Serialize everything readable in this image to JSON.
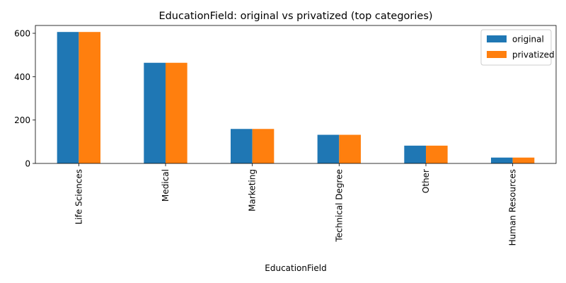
{
  "chart_data": {
    "type": "bar",
    "title": "EducationField: original vs privatized (top categories)",
    "xlabel": "EducationField",
    "ylabel": "",
    "categories": [
      "Life Sciences",
      "Medical",
      "Marketing",
      "Technical Degree",
      "Other",
      "Human Resources"
    ],
    "series": [
      {
        "name": "original",
        "values": [
          606,
          464,
          159,
          132,
          82,
          27
        ],
        "color": "#1f77b4"
      },
      {
        "name": "privatized",
        "values": [
          606,
          464,
          159,
          132,
          82,
          27
        ],
        "color": "#ff7f0e"
      }
    ],
    "ylim": [
      0,
      636
    ],
    "yticks": [
      0,
      200,
      400,
      600
    ],
    "legend_position": "top-right",
    "grid": false
  }
}
